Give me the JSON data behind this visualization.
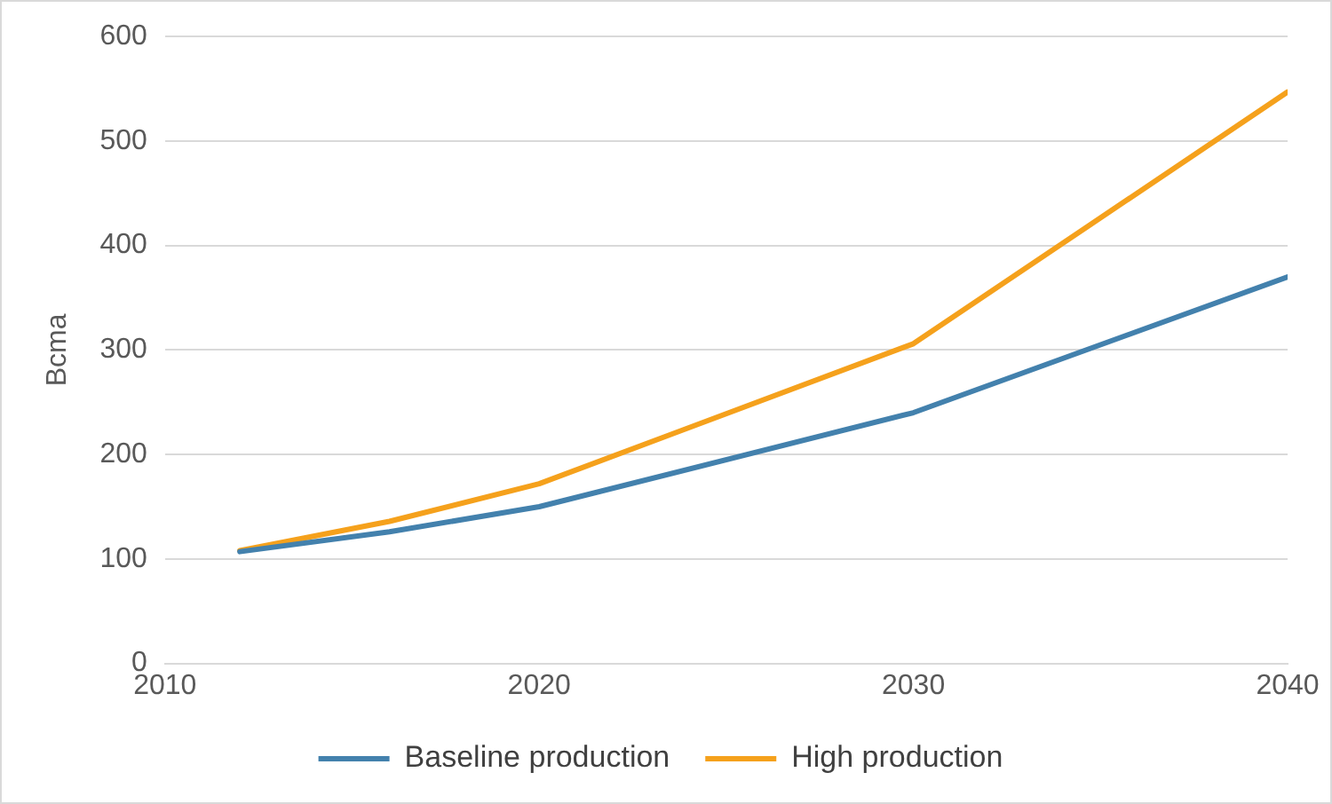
{
  "chart_data": {
    "type": "line",
    "ylabel": "Bcma",
    "x": [
      2012,
      2016,
      2020,
      2030,
      2040
    ],
    "series": [
      {
        "name": "Baseline production",
        "color": "#4381ad",
        "values": [
          107,
          126,
          150,
          240,
          370
        ]
      },
      {
        "name": "High production",
        "color": "#f5a11c",
        "values": [
          108,
          136,
          172,
          306,
          547
        ]
      }
    ],
    "xlim": [
      2010,
      2040
    ],
    "xticks": [
      2010,
      2020,
      2030,
      2040
    ],
    "ylim": [
      0,
      600
    ],
    "yticks": [
      0,
      100,
      200,
      300,
      400,
      500,
      600
    ],
    "grid": "y",
    "legend": "bottom",
    "marker": "none",
    "line_style": "solid"
  }
}
